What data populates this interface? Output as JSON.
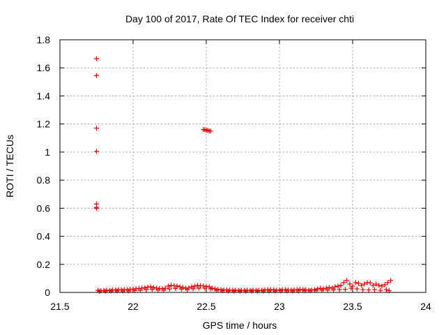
{
  "chart_data": {
    "type": "scatter",
    "title": "Day 100 of 2017, Rate Of TEC Index for receiver chti",
    "xlabel": "GPS time / hours",
    "ylabel": "ROTI / TECUs",
    "xlim": [
      21.5,
      24
    ],
    "ylim": [
      0,
      1.8
    ],
    "xticks": [
      "21.5",
      "22",
      "22.5",
      "23",
      "23.5",
      "24"
    ],
    "yticks": [
      "0",
      "0.2",
      "0.4",
      "0.6",
      "0.8",
      "1",
      "1.2",
      "1.4",
      "1.6",
      "1.8"
    ],
    "grid": true,
    "marker": "plus",
    "color": "#e00000",
    "series": [
      {
        "x": [
          21.75,
          21.75,
          21.75,
          21.75,
          21.75,
          21.75,
          21.75,
          21.75,
          22.48,
          22.49,
          22.5,
          22.51,
          22.52,
          22.53
        ],
        "y": [
          1.665,
          1.545,
          1.17,
          1.005,
          0.63,
          0.605,
          0.6,
          0.6,
          1.16,
          1.16,
          1.155,
          1.155,
          1.15,
          1.15
        ]
      },
      {
        "x": [
          21.76,
          21.78,
          21.8,
          21.82,
          21.84,
          21.86,
          21.88,
          21.9,
          21.92,
          21.94,
          21.96,
          21.98,
          22.0,
          22.02,
          22.04,
          22.06,
          22.08,
          22.1,
          22.12,
          22.14,
          22.16,
          22.18,
          22.2,
          22.22,
          22.24,
          22.26,
          22.28,
          22.3,
          22.32,
          22.34,
          22.36,
          22.38,
          22.4,
          22.42,
          22.44,
          22.46,
          22.48,
          22.5,
          22.52,
          22.54,
          22.56,
          22.58,
          22.6,
          22.62,
          22.64,
          22.66,
          22.68,
          22.7,
          22.72,
          22.74,
          22.76,
          22.78,
          22.8,
          22.82,
          22.84,
          22.86,
          22.88,
          22.9,
          22.92,
          22.94,
          22.96,
          22.98,
          23.0,
          23.02,
          23.04,
          23.06,
          23.08,
          23.1,
          23.12,
          23.14,
          23.16,
          23.18,
          23.2,
          23.22,
          23.24,
          23.26,
          23.28,
          23.3,
          23.32,
          23.34,
          23.36,
          23.38,
          23.4,
          23.42,
          23.44,
          23.46,
          23.48,
          23.5,
          23.52,
          23.54,
          23.56,
          23.58,
          23.6,
          23.62,
          23.64,
          23.66,
          23.68,
          23.7,
          23.72,
          23.74,
          23.76
        ],
        "y": [
          0.015,
          0.012,
          0.014,
          0.016,
          0.013,
          0.018,
          0.017,
          0.02,
          0.019,
          0.021,
          0.02,
          0.022,
          0.024,
          0.026,
          0.028,
          0.03,
          0.033,
          0.038,
          0.04,
          0.035,
          0.03,
          0.028,
          0.026,
          0.03,
          0.045,
          0.05,
          0.048,
          0.046,
          0.04,
          0.035,
          0.03,
          0.032,
          0.04,
          0.045,
          0.05,
          0.048,
          0.046,
          0.044,
          0.04,
          0.03,
          0.025,
          0.022,
          0.02,
          0.018,
          0.018,
          0.017,
          0.016,
          0.016,
          0.015,
          0.016,
          0.015,
          0.016,
          0.015,
          0.017,
          0.016,
          0.015,
          0.016,
          0.018,
          0.02,
          0.02,
          0.018,
          0.016,
          0.018,
          0.02,
          0.02,
          0.018,
          0.017,
          0.018,
          0.02,
          0.022,
          0.02,
          0.018,
          0.016,
          0.018,
          0.02,
          0.025,
          0.03,
          0.025,
          0.03,
          0.035,
          0.03,
          0.04,
          0.045,
          0.05,
          0.07,
          0.085,
          0.06,
          0.045,
          0.07,
          0.065,
          0.05,
          0.06,
          0.07,
          0.068,
          0.05,
          0.06,
          0.05,
          0.045,
          0.055,
          0.07,
          0.085
        ]
      },
      {
        "x": [
          21.77,
          21.81,
          21.85,
          21.89,
          21.93,
          21.97,
          22.01,
          22.05,
          22.09,
          22.13,
          22.17,
          22.21,
          22.25,
          22.29,
          22.33,
          22.37,
          22.41,
          22.45,
          22.49,
          22.53,
          22.57,
          22.61,
          22.65,
          22.69,
          22.73,
          22.77,
          22.81,
          22.85,
          22.89,
          22.93,
          22.97,
          23.01,
          23.05,
          23.09,
          23.13,
          23.17,
          23.21,
          23.25,
          23.29,
          23.33,
          23.37,
          23.41,
          23.45,
          23.49,
          23.53,
          23.57,
          23.61,
          23.65,
          23.69,
          23.73,
          23.75
        ],
        "y": [
          0.008,
          0.009,
          0.01,
          0.011,
          0.01,
          0.012,
          0.014,
          0.016,
          0.02,
          0.022,
          0.018,
          0.016,
          0.025,
          0.028,
          0.024,
          0.02,
          0.026,
          0.03,
          0.03,
          0.025,
          0.015,
          0.012,
          0.01,
          0.01,
          0.009,
          0.009,
          0.01,
          0.009,
          0.01,
          0.011,
          0.01,
          0.012,
          0.011,
          0.01,
          0.012,
          0.013,
          0.012,
          0.014,
          0.015,
          0.016,
          0.018,
          0.02,
          0.022,
          0.03,
          0.025,
          0.02,
          0.018,
          0.02,
          0.015,
          0.02,
          0.012
        ]
      }
    ]
  }
}
